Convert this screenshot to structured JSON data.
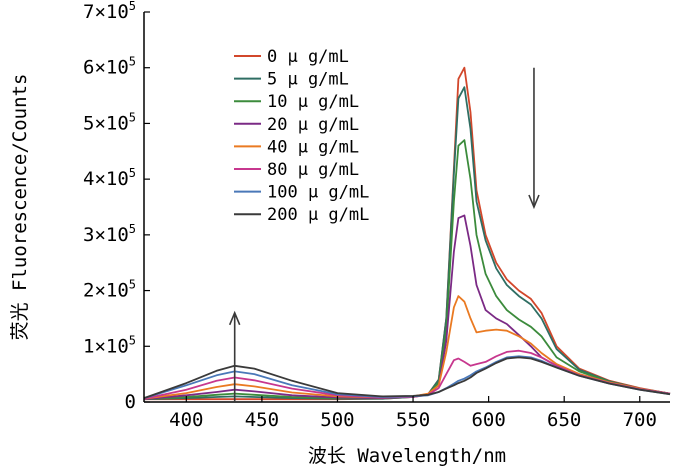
{
  "chart_data": {
    "type": "line",
    "title": "",
    "xlabel": "波长 Wavelength/nm",
    "ylabel": "荧光 Fluorescence/Counts",
    "xlim": [
      372,
      720
    ],
    "ylim": [
      0,
      700000
    ],
    "x_ticks": [
      400,
      450,
      500,
      550,
      600,
      650,
      700
    ],
    "y_ticks": [
      {
        "value": 0,
        "mantissa": "0",
        "base": "",
        "exp": ""
      },
      {
        "value": 100000,
        "mantissa": "1",
        "base": "×10",
        "exp": "5"
      },
      {
        "value": 200000,
        "mantissa": "2",
        "base": "×10",
        "exp": "5"
      },
      {
        "value": 300000,
        "mantissa": "3",
        "base": "×10",
        "exp": "5"
      },
      {
        "value": 400000,
        "mantissa": "4",
        "base": "×10",
        "exp": "5"
      },
      {
        "value": 500000,
        "mantissa": "5",
        "base": "×10",
        "exp": "5"
      },
      {
        "value": 600000,
        "mantissa": "6",
        "base": "×10",
        "exp": "5"
      },
      {
        "value": 700000,
        "mantissa": "7",
        "base": "×10",
        "exp": "5"
      }
    ],
    "legend_position": "top-left",
    "x": [
      372,
      400,
      420,
      432,
      445,
      470,
      500,
      530,
      550,
      560,
      567,
      572,
      577,
      580,
      584,
      588,
      592,
      598,
      605,
      612,
      620,
      628,
      635,
      645,
      660,
      680,
      700,
      720
    ],
    "series": [
      {
        "name": "0 μ g/mL",
        "color": "#d2472b",
        "values": [
          5000,
          5000,
          5000,
          5000,
          5000,
          5000,
          5000,
          6000,
          9000,
          14000,
          40000,
          150000,
          420000,
          580000,
          600000,
          520000,
          380000,
          300000,
          250000,
          220000,
          200000,
          185000,
          160000,
          100000,
          60000,
          38000,
          25000,
          15000
        ]
      },
      {
        "name": "5 μ g/mL",
        "color": "#2f6e63",
        "values": [
          5000,
          7000,
          9000,
          10000,
          9000,
          7000,
          6000,
          6000,
          9000,
          14000,
          40000,
          150000,
          410000,
          545000,
          565000,
          490000,
          360000,
          290000,
          240000,
          210000,
          190000,
          175000,
          150000,
          95000,
          58000,
          37000,
          24000,
          15000
        ]
      },
      {
        "name": "10 μ g/mL",
        "color": "#3c8b3c",
        "values": [
          5000,
          9000,
          13000,
          15000,
          13000,
          9000,
          7000,
          7000,
          10000,
          14000,
          35000,
          130000,
          360000,
          460000,
          470000,
          400000,
          300000,
          230000,
          190000,
          165000,
          148000,
          135000,
          118000,
          80000,
          55000,
          36000,
          24000,
          15000
        ]
      },
      {
        "name": "20 μ g/mL",
        "color": "#7b2a85",
        "values": [
          5000,
          12000,
          18000,
          22000,
          19000,
          12000,
          8000,
          7000,
          10000,
          14000,
          30000,
          110000,
          270000,
          330000,
          335000,
          280000,
          210000,
          165000,
          150000,
          140000,
          120000,
          100000,
          80000,
          65000,
          50000,
          35000,
          24000,
          15000
        ]
      },
      {
        "name": "40 μ g/mL",
        "color": "#ea7a22",
        "values": [
          6000,
          16000,
          27000,
          32000,
          28000,
          17000,
          10000,
          8000,
          10000,
          15000,
          30000,
          90000,
          170000,
          190000,
          180000,
          150000,
          125000,
          128000,
          130000,
          128000,
          118000,
          105000,
          88000,
          68000,
          50000,
          35000,
          24000,
          15000
        ]
      },
      {
        "name": "80 μ g/mL",
        "color": "#c7378e",
        "values": [
          6000,
          22000,
          38000,
          44000,
          39000,
          24000,
          12000,
          8000,
          9000,
          13000,
          25000,
          50000,
          75000,
          78000,
          72000,
          65000,
          68000,
          72000,
          82000,
          90000,
          92000,
          88000,
          80000,
          65000,
          48000,
          34000,
          23000,
          15000
        ]
      },
      {
        "name": "100 μ g/mL",
        "color": "#4a78b8",
        "values": [
          7000,
          30000,
          48000,
          55000,
          50000,
          30000,
          14000,
          9000,
          10000,
          12000,
          18000,
          25000,
          33000,
          38000,
          42000,
          48000,
          55000,
          62000,
          72000,
          80000,
          82000,
          80000,
          74000,
          62000,
          47000,
          33000,
          22000,
          14000
        ]
      },
      {
        "name": "200 μ g/mL",
        "color": "#3a3a3a",
        "values": [
          7000,
          34000,
          56000,
          65000,
          60000,
          38000,
          16000,
          10000,
          11000,
          13000,
          18000,
          24000,
          30000,
          34000,
          38000,
          44000,
          52000,
          60000,
          70000,
          78000,
          80000,
          78000,
          72000,
          62000,
          47000,
          33000,
          22000,
          14000
        ]
      }
    ],
    "annotations": [
      {
        "type": "arrow",
        "direction": "up",
        "x": 432,
        "y_from": 0,
        "y_to": 160000
      },
      {
        "type": "arrow",
        "direction": "down",
        "x": 630,
        "y_from": 600000,
        "y_to": 350000
      }
    ]
  }
}
